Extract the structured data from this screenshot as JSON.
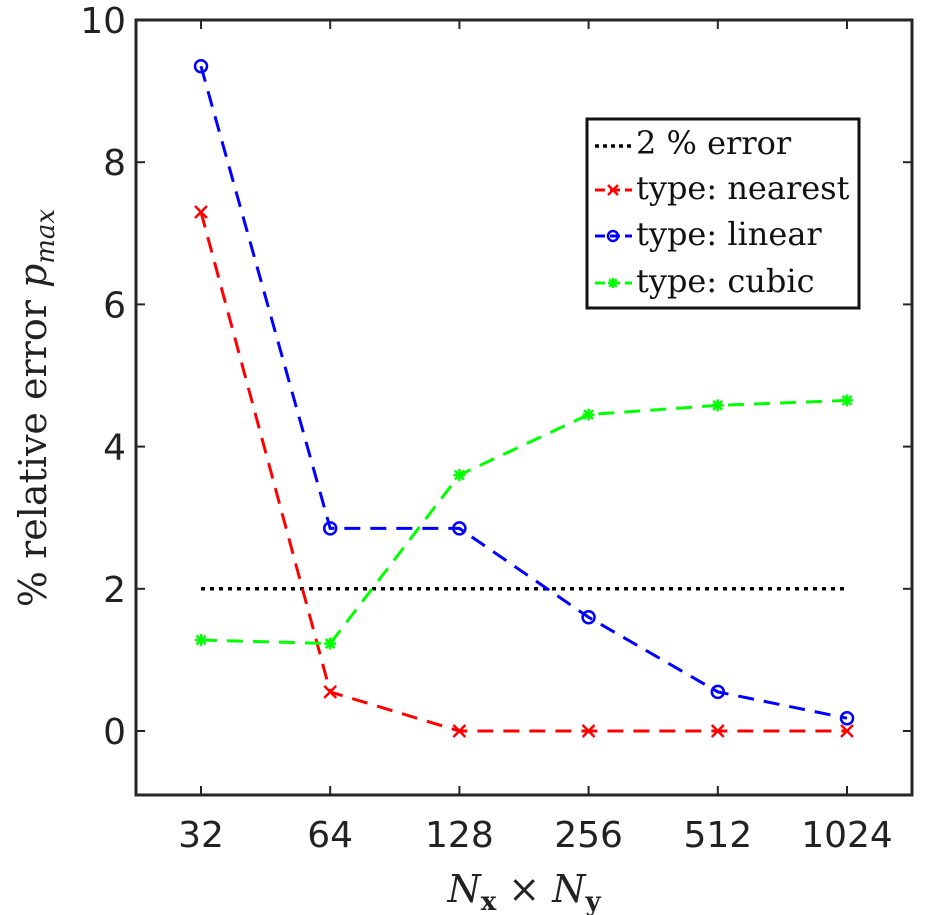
{
  "chart_data": {
    "type": "line",
    "title": "",
    "xlabel": "N",
    "xlabel_sub1": "x",
    "xlabel_times": " × ",
    "xlabel_sub2": "y",
    "ylabel": "% relative error ",
    "ylabel_var": "p",
    "ylabel_sub": "max",
    "categories": [
      "32",
      "64",
      "128",
      "256",
      "512",
      "1024"
    ],
    "ylim": [
      -0.9,
      10
    ],
    "yticks": [
      "0",
      "2",
      "4",
      "6",
      "8",
      "10"
    ],
    "legend_position": "top-right",
    "series": [
      {
        "name": "2 % error",
        "color": "#000000",
        "style": "dotted",
        "marker": "none",
        "values": [
          2,
          2,
          2,
          2,
          2,
          2
        ]
      },
      {
        "name": "type: nearest",
        "color": "#ff0000",
        "style": "dashed",
        "marker": "x",
        "values": [
          7.3,
          0.55,
          0.0,
          0.0,
          0.0,
          0.0
        ]
      },
      {
        "name": "type: linear",
        "color": "#0000ff",
        "style": "dashed",
        "marker": "o",
        "values": [
          9.35,
          2.85,
          2.85,
          1.6,
          0.55,
          0.18
        ]
      },
      {
        "name": "type: cubic",
        "color": "#00ff00",
        "style": "dashed",
        "marker": "*",
        "values": [
          1.28,
          1.23,
          3.6,
          4.45,
          4.58,
          4.65
        ]
      }
    ]
  }
}
